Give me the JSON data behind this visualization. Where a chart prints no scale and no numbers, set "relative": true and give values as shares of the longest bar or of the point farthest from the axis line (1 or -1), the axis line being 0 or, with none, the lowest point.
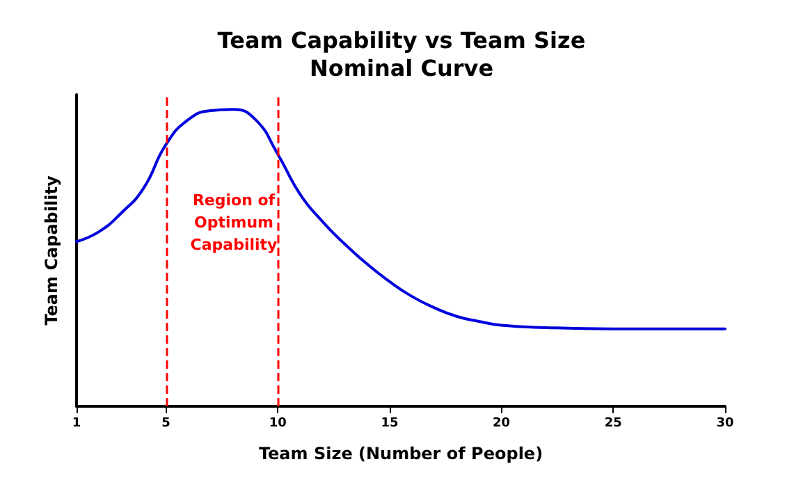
{
  "chart_data": {
    "type": "line",
    "title": "Team Capability vs Team Size",
    "subtitle": "Nominal Curve",
    "xlabel": "Team Size (Number of People)",
    "ylabel": "Team Capability",
    "relative": true,
    "xlim": [
      1,
      30
    ],
    "xticks": [
      1,
      5,
      10,
      15,
      20,
      25,
      30
    ],
    "grid": false,
    "marker": "none",
    "line_style": "solid",
    "series": [
      {
        "color": "#0000dd",
        "x": [
          1,
          2,
          3,
          4,
          5,
          6,
          7,
          8,
          9,
          10,
          11,
          12,
          13,
          14,
          15,
          16,
          17,
          18,
          19,
          20,
          22,
          25,
          30
        ],
        "values": [
          0.555,
          0.588,
          0.651,
          0.735,
          0.882,
          0.966,
          0.996,
          1,
          0.966,
          0.849,
          0.714,
          0.622,
          0.546,
          0.479,
          0.42,
          0.37,
          0.332,
          0.303,
          0.286,
          0.273,
          0.265,
          0.261,
          0.261
        ]
      }
    ],
    "ref_lines": [
      {
        "axis": "x",
        "value": 5,
        "color": "#ff0000",
        "line_style": "dashed"
      },
      {
        "axis": "x",
        "value": 10,
        "color": "#ff0000",
        "line_style": "dashed"
      }
    ],
    "annotations": [
      "Region of\nOptimum\nCapability"
    ]
  }
}
